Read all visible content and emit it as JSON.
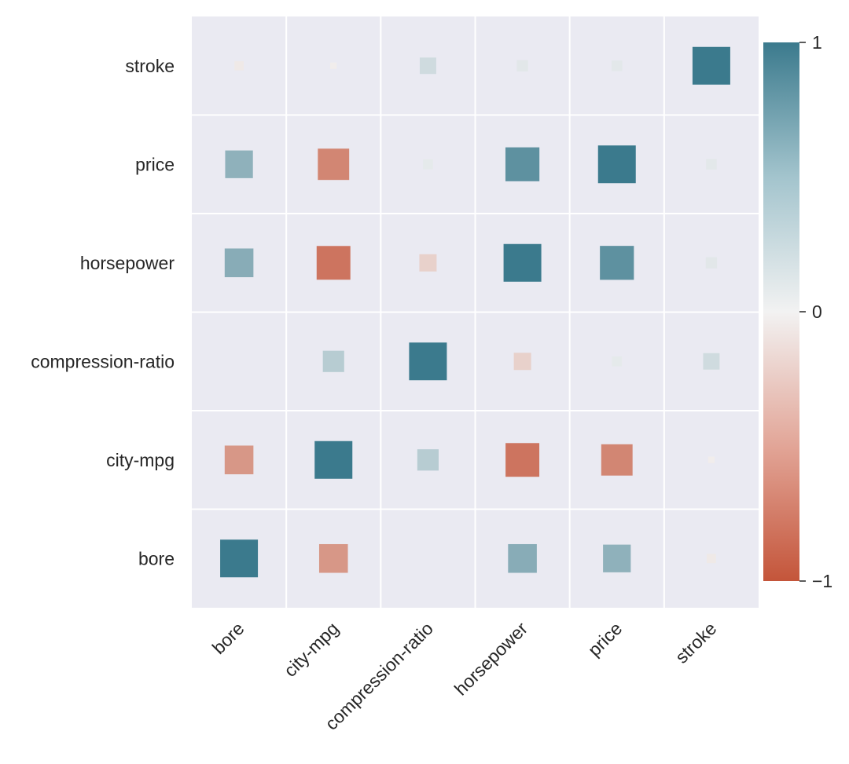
{
  "chart_data": {
    "type": "heatmap",
    "title": "",
    "xlabel": "",
    "ylabel": "",
    "variables": [
      "bore",
      "city-mpg",
      "compression-ratio",
      "horsepower",
      "price",
      "stroke"
    ],
    "x_categories": [
      "bore",
      "city-mpg",
      "compression-ratio",
      "horsepower",
      "price",
      "stroke"
    ],
    "y_categories_top_to_bottom": [
      "stroke",
      "price",
      "horsepower",
      "compression-ratio",
      "city-mpg",
      "bore"
    ],
    "values": [
      [
        1.0,
        -0.58,
        0.0,
        0.58,
        0.54,
        -0.06
      ],
      [
        -0.58,
        1.0,
        0.32,
        -0.8,
        -0.69,
        -0.03
      ],
      [
        0.0,
        0.32,
        1.0,
        -0.21,
        0.07,
        0.19
      ],
      [
        0.58,
        -0.8,
        -0.21,
        1.0,
        0.81,
        0.09
      ],
      [
        0.54,
        -0.69,
        0.07,
        0.81,
        1.0,
        0.08
      ],
      [
        -0.06,
        -0.03,
        0.19,
        0.09,
        0.08,
        1.0
      ]
    ],
    "marker": "square sized by |correlation|",
    "colorbar": {
      "min": -1,
      "max": 1,
      "ticks": [
        1,
        0,
        -1
      ],
      "tick_labels": [
        "1",
        "0",
        "−1"
      ],
      "color_negative": "#c4553a",
      "color_zero": "#f2f2f2",
      "color_positive": "#3b7a8d"
    },
    "grid": true,
    "background": "#eaeaf2"
  }
}
